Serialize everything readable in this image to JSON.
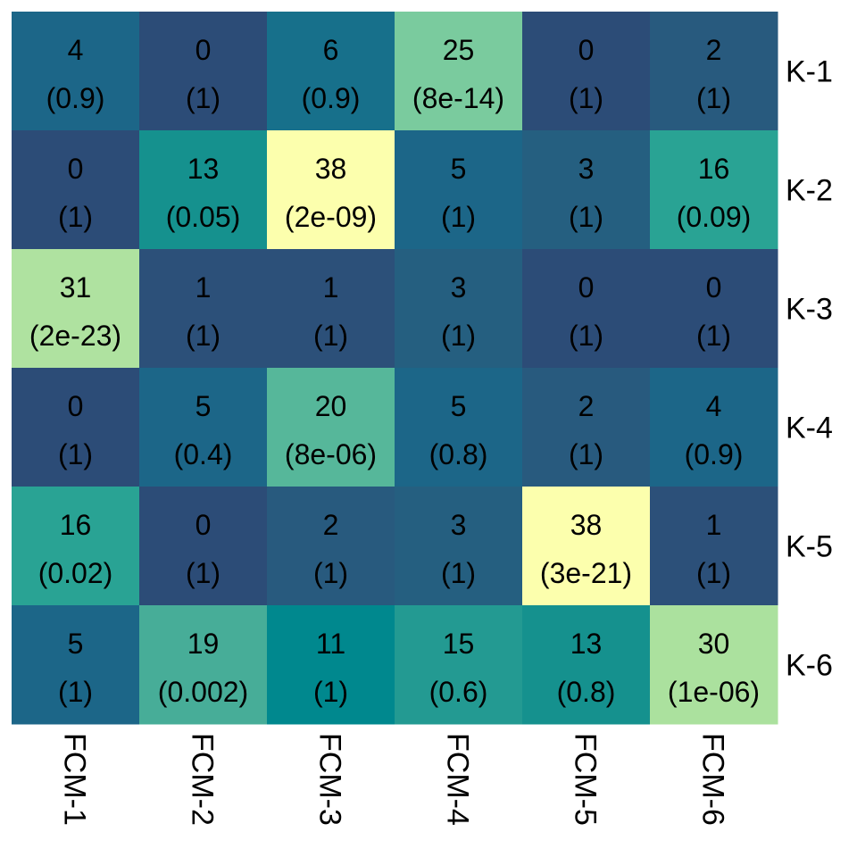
{
  "chart_data": {
    "type": "heatmap",
    "title": "",
    "xlabel": "",
    "ylabel": "",
    "legend": "none",
    "grid": false,
    "x_categories": [
      "FCM-1",
      "FCM-2",
      "FCM-3",
      "FCM-4",
      "FCM-5",
      "FCM-6"
    ],
    "y_categories": [
      "K-1",
      "K-2",
      "K-3",
      "K-4",
      "K-5",
      "K-6"
    ],
    "counts": [
      [
        4,
        0,
        6,
        25,
        0,
        2
      ],
      [
        0,
        13,
        38,
        5,
        3,
        16
      ],
      [
        31,
        1,
        1,
        3,
        0,
        0
      ],
      [
        0,
        5,
        20,
        5,
        2,
        4
      ],
      [
        16,
        0,
        2,
        3,
        38,
        1
      ],
      [
        5,
        19,
        11,
        15,
        13,
        30
      ]
    ],
    "pvalues": [
      [
        "0.9",
        "1",
        "0.9",
        "8e-14",
        "1",
        "1"
      ],
      [
        "1",
        "0.05",
        "2e-09",
        "1",
        "1",
        "0.09"
      ],
      [
        "2e-23",
        "1",
        "1",
        "1",
        "1",
        "1"
      ],
      [
        "1",
        "0.4",
        "8e-06",
        "0.8",
        "1",
        "0.9"
      ],
      [
        "0.02",
        "1",
        "1",
        "1",
        "3e-21",
        "1"
      ],
      [
        "1",
        "0.002",
        "1",
        "0.6",
        "0.8",
        "1e-06"
      ]
    ],
    "colors": [
      [
        "#1c6688",
        "#2c4c77",
        "#17708b",
        "#7acb9e",
        "#2c4c77",
        "#285a7e"
      ],
      [
        "#2c4c77",
        "#15918e",
        "#fcffad",
        "#1c6688",
        "#255f80",
        "#29a394"
      ],
      [
        "#afe2a0",
        "#2c5079",
        "#2c5079",
        "#255f80",
        "#2c4c77",
        "#2c4c77"
      ],
      [
        "#2c4c77",
        "#1c6688",
        "#56b79a",
        "#1c6688",
        "#285a7e",
        "#1c6688"
      ],
      [
        "#29a394",
        "#2c4c77",
        "#285a7e",
        "#255f80",
        "#fcffad",
        "#2c5079"
      ],
      [
        "#1c6688",
        "#47ad98",
        "#00888e",
        "#239a92",
        "#15918e",
        "#abe19e"
      ]
    ]
  }
}
